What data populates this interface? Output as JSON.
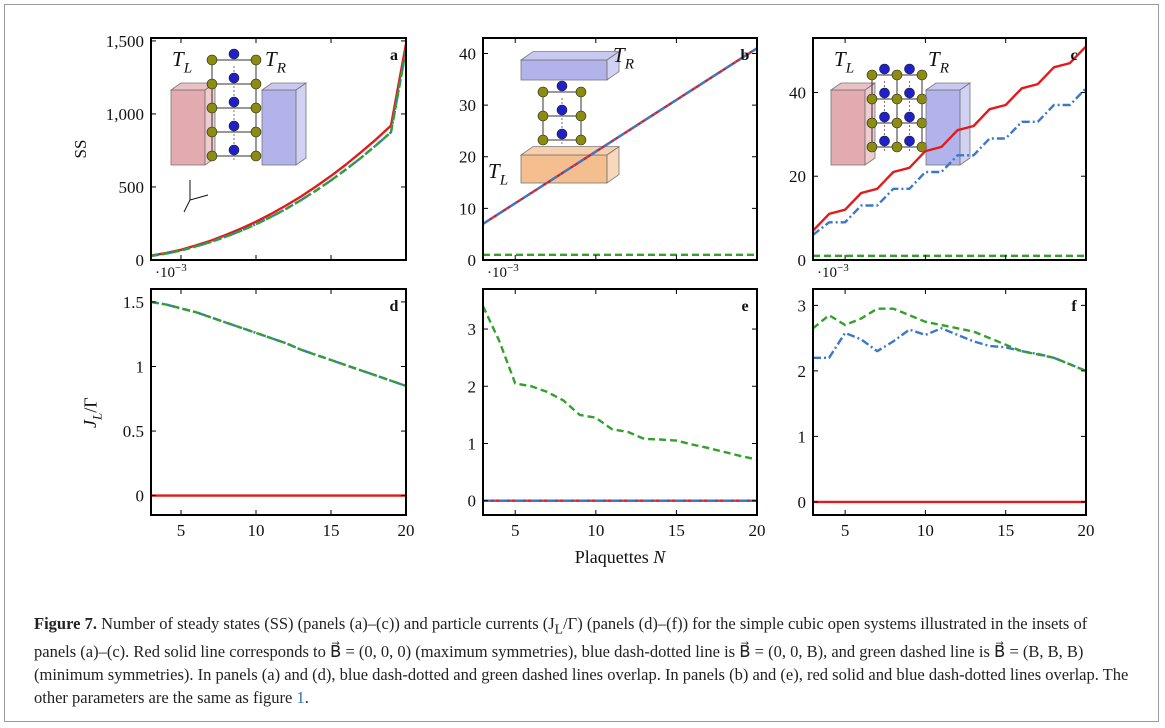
{
  "figure": {
    "xlabel": "Plaquettes N",
    "caption_label": "Figure 7.",
    "caption_parts": [
      " Number of steady states (SS) (panels (a)–(c)) and particle currents (J",
      "/Γ) (panels (d)–(f)) for the simple cubic open systems illustrated in the insets of panels (a)–(c). Red solid line corresponds to B⃗ = (0, 0, 0) (maximum symmetries), blue dash-dotted line is B⃗ = (0, 0, B), and green dashed line is B⃗ = (B, B, B) (minimum symmetries). In panels (a) and (d), blue dash-dotted and green dashed lines overlap. In panels (b) and (e), red solid and blue dash-dotted lines overlap. The other parameters are the same as figure ",
      "."
    ],
    "caption_sub": "L",
    "caption_ref": "1"
  },
  "colors": {
    "red": "#e31a1c",
    "blue": "#3a78c8",
    "green": "#33a02c",
    "reservoir_left": "#d98e94",
    "reservoir_right": "#9a9ae6",
    "reservoir_bottom": "#f0a868",
    "atom_blue": "#2020c8",
    "atom_olive": "#8c8c10"
  },
  "chart_data": [
    {
      "panel": "a",
      "type": "line",
      "ylabel": "SS",
      "exponent_label": "·10−3",
      "xlim": [
        3,
        20
      ],
      "ylim": [
        0,
        1520
      ],
      "yticks": [
        0,
        500,
        1000,
        1500
      ],
      "ytick_labels": [
        "0",
        "500",
        "1,000",
        "1,500"
      ],
      "xticks": [
        5,
        10,
        15,
        20
      ],
      "show_xtick_labels": false,
      "inset_labels": [
        "T_L",
        "T_R"
      ],
      "series": [
        {
          "name": "B=(0,0,0)",
          "style": "solid",
          "color": "red",
          "x": [
            3,
            4,
            5,
            6,
            7,
            8,
            9,
            10,
            11,
            12,
            13,
            14,
            15,
            16,
            17,
            18,
            19,
            20
          ],
          "y": [
            30,
            47,
            70,
            100,
            133,
            172,
            215,
            262,
            315,
            373,
            435,
            503,
            576,
            654,
            738,
            826,
            920,
            1480
          ]
        },
        {
          "name": "B=(0,0,B)",
          "style": "dashdot",
          "color": "blue",
          "x": [
            3,
            4,
            5,
            6,
            7,
            8,
            9,
            10,
            11,
            12,
            13,
            14,
            15,
            16,
            17,
            18,
            19,
            20
          ],
          "y": [
            28,
            44,
            65,
            93,
            124,
            160,
            200,
            245,
            295,
            350,
            410,
            475,
            545,
            620,
            700,
            785,
            875,
            1440
          ]
        },
        {
          "name": "B=(B,B,B)",
          "style": "dashed",
          "color": "green",
          "x": [
            3,
            4,
            5,
            6,
            7,
            8,
            9,
            10,
            11,
            12,
            13,
            14,
            15,
            16,
            17,
            18,
            19,
            20
          ],
          "y": [
            28,
            44,
            65,
            93,
            124,
            160,
            200,
            245,
            295,
            350,
            410,
            475,
            545,
            620,
            700,
            785,
            875,
            1440
          ]
        }
      ]
    },
    {
      "panel": "b",
      "type": "line",
      "exponent_label": "·10−3",
      "xlim": [
        3,
        20
      ],
      "ylim": [
        0,
        43
      ],
      "yticks": [
        0,
        10,
        20,
        30,
        40
      ],
      "ytick_labels": [
        "0",
        "10",
        "20",
        "30",
        "40"
      ],
      "xticks": [
        5,
        10,
        15,
        20
      ],
      "show_xtick_labels": false,
      "inset_labels": [
        "T_R",
        "T_L"
      ],
      "series": [
        {
          "name": "B=(0,0,0)",
          "style": "solid",
          "color": "red",
          "x": [
            3,
            20
          ],
          "y": [
            7,
            41
          ]
        },
        {
          "name": "B=(0,0,B)",
          "style": "dashdot",
          "color": "blue",
          "x": [
            3,
            20
          ],
          "y": [
            7,
            41
          ]
        },
        {
          "name": "B=(B,B,B)",
          "style": "dashed",
          "color": "green",
          "x": [
            3,
            20
          ],
          "y": [
            1,
            1
          ]
        }
      ]
    },
    {
      "panel": "c",
      "type": "line",
      "exponent_label": "·10−3",
      "xlim": [
        3,
        20
      ],
      "ylim": [
        0,
        53
      ],
      "yticks": [
        0,
        20,
        40
      ],
      "ytick_labels": [
        "0",
        "20",
        "40"
      ],
      "xticks": [
        5,
        10,
        15,
        20
      ],
      "show_xtick_labels": false,
      "inset_labels": [
        "T_L",
        "T_R"
      ],
      "series": [
        {
          "name": "B=(0,0,0)",
          "style": "solid",
          "color": "red",
          "x": [
            3,
            4,
            5,
            6,
            7,
            8,
            9,
            10,
            11,
            12,
            13,
            14,
            15,
            16,
            17,
            18,
            19,
            20
          ],
          "y": [
            7,
            11,
            12,
            16,
            17,
            21,
            22,
            26,
            27,
            31,
            32,
            36,
            37,
            41,
            42,
            46,
            47,
            51
          ]
        },
        {
          "name": "B=(0,0,B)",
          "style": "dashdot",
          "color": "blue",
          "x": [
            3,
            4,
            5,
            6,
            7,
            8,
            9,
            10,
            11,
            12,
            13,
            14,
            15,
            16,
            17,
            18,
            19,
            20
          ],
          "y": [
            6,
            9,
            9,
            13,
            13,
            17,
            17,
            21,
            21,
            25,
            25,
            29,
            29,
            33,
            33,
            37,
            37,
            41
          ]
        },
        {
          "name": "B=(B,B,B)",
          "style": "dashed",
          "color": "green",
          "x": [
            3,
            20
          ],
          "y": [
            1,
            1
          ]
        }
      ]
    },
    {
      "panel": "d",
      "type": "line",
      "ylabel": "J_L/Γ",
      "xlim": [
        3,
        20
      ],
      "ylim": [
        -0.15,
        1.6
      ],
      "yticks": [
        0,
        0.5,
        1,
        1.5
      ],
      "ytick_labels": [
        "0",
        "0.5",
        "1",
        "1.5"
      ],
      "xticks": [
        5,
        10,
        15,
        20
      ],
      "xtick_labels": [
        "5",
        "10",
        "15",
        "20"
      ],
      "series": [
        {
          "name": "B=(0,0,0)",
          "style": "solid",
          "color": "red",
          "x": [
            3,
            20
          ],
          "y": [
            0,
            0
          ]
        },
        {
          "name": "B=(0,0,B)",
          "style": "dashdot",
          "color": "blue",
          "x": [
            3,
            4,
            5,
            6,
            7,
            8,
            9,
            10,
            11,
            12,
            13,
            14,
            15,
            16,
            17,
            18,
            19,
            20
          ],
          "y": [
            1.5,
            1.48,
            1.45,
            1.42,
            1.38,
            1.34,
            1.3,
            1.26,
            1.22,
            1.18,
            1.13,
            1.09,
            1.05,
            1.01,
            0.97,
            0.93,
            0.89,
            0.85
          ]
        },
        {
          "name": "B=(B,B,B)",
          "style": "dashed",
          "color": "green",
          "x": [
            3,
            4,
            5,
            6,
            7,
            8,
            9,
            10,
            11,
            12,
            13,
            14,
            15,
            16,
            17,
            18,
            19,
            20
          ],
          "y": [
            1.5,
            1.48,
            1.45,
            1.42,
            1.38,
            1.34,
            1.3,
            1.26,
            1.22,
            1.18,
            1.13,
            1.09,
            1.05,
            1.01,
            0.97,
            0.93,
            0.89,
            0.85
          ]
        }
      ]
    },
    {
      "panel": "e",
      "type": "line",
      "xlim": [
        3,
        20
      ],
      "ylim": [
        -0.25,
        3.7
      ],
      "yticks": [
        0,
        1,
        2,
        3
      ],
      "ytick_labels": [
        "0",
        "1",
        "2",
        "3"
      ],
      "xticks": [
        5,
        10,
        15,
        20
      ],
      "xtick_labels": [
        "5",
        "10",
        "15",
        "20"
      ],
      "series": [
        {
          "name": "B=(0,0,0)",
          "style": "solid",
          "color": "red",
          "x": [
            3,
            20
          ],
          "y": [
            0,
            0
          ]
        },
        {
          "name": "B=(0,0,B)",
          "style": "dashdot",
          "color": "blue",
          "x": [
            3,
            20
          ],
          "y": [
            0,
            0
          ]
        },
        {
          "name": "B=(B,B,B)",
          "style": "dashed",
          "color": "green",
          "x": [
            3,
            4,
            5,
            6,
            7,
            8,
            9,
            10,
            11,
            12,
            13,
            14,
            15,
            16,
            17,
            18,
            19,
            20
          ],
          "y": [
            3.4,
            2.8,
            2.05,
            2.0,
            1.9,
            1.75,
            1.5,
            1.45,
            1.25,
            1.2,
            1.08,
            1.07,
            1.05,
            0.98,
            0.92,
            0.85,
            0.78,
            0.72
          ]
        }
      ]
    },
    {
      "panel": "f",
      "type": "line",
      "xlim": [
        3,
        20
      ],
      "ylim": [
        -0.2,
        3.25
      ],
      "yticks": [
        0,
        1,
        2,
        3
      ],
      "ytick_labels": [
        "0",
        "1",
        "2",
        "3"
      ],
      "xticks": [
        5,
        10,
        15,
        20
      ],
      "xtick_labels": [
        "5",
        "10",
        "15",
        "20"
      ],
      "series": [
        {
          "name": "B=(0,0,0)",
          "style": "solid",
          "color": "red",
          "x": [
            3,
            20
          ],
          "y": [
            0,
            0
          ]
        },
        {
          "name": "B=(0,0,B)",
          "style": "dashdot",
          "color": "blue",
          "x": [
            3,
            4,
            5,
            6,
            7,
            8,
            9,
            10,
            11,
            12,
            13,
            14,
            15,
            16,
            17,
            18,
            19,
            20
          ],
          "y": [
            2.2,
            2.2,
            2.58,
            2.48,
            2.3,
            2.45,
            2.63,
            2.55,
            2.65,
            2.55,
            2.45,
            2.38,
            2.36,
            2.3,
            2.26,
            2.2,
            2.1,
            2.0
          ]
        },
        {
          "name": "B=(B,B,B)",
          "style": "dashed",
          "color": "green",
          "x": [
            3,
            4,
            5,
            6,
            7,
            8,
            9,
            10,
            11,
            12,
            13,
            14,
            15,
            16,
            17,
            18,
            19,
            20
          ],
          "y": [
            2.65,
            2.85,
            2.7,
            2.8,
            2.95,
            2.95,
            2.85,
            2.75,
            2.7,
            2.65,
            2.6,
            2.5,
            2.4,
            2.3,
            2.25,
            2.2,
            2.1,
            2.0
          ]
        }
      ]
    }
  ]
}
